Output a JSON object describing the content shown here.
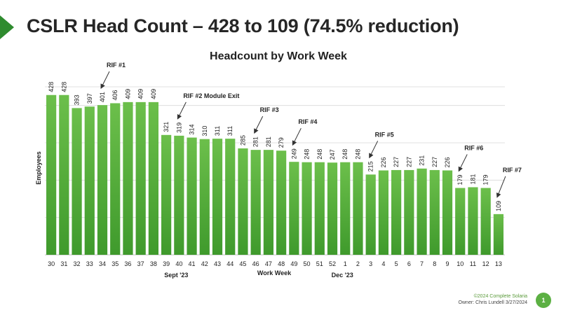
{
  "slide": {
    "title": "CSLR Head Count – 428 to 109 (74.5% reduction)",
    "footer_copyright": "©2024 Complete Solaria",
    "footer_owner": "Owner: Chris Lundell 3/27/2024",
    "page_number": "1"
  },
  "colors": {
    "bar_top": "#6cbf4b",
    "bar_bottom": "#3f9a2c",
    "accent": "#2e8b2e"
  },
  "chart_data": {
    "type": "bar",
    "title": "Headcount by Work Week",
    "xlabel": "Work Week",
    "ylabel": "Employees",
    "ylim": [
      0,
      450
    ],
    "grid": true,
    "categories": [
      "30",
      "31",
      "32",
      "33",
      "34",
      "35",
      "36",
      "37",
      "38",
      "39",
      "40",
      "41",
      "42",
      "43",
      "44",
      "45",
      "46",
      "47",
      "48",
      "49",
      "50",
      "51",
      "52",
      "1",
      "2",
      "3",
      "4",
      "5",
      "6",
      "7",
      "8",
      "9",
      "10",
      "11",
      "12",
      "13"
    ],
    "values": [
      428,
      428,
      393,
      397,
      401,
      406,
      409,
      409,
      409,
      321,
      319,
      314,
      310,
      311,
      311,
      285,
      281,
      281,
      279,
      249,
      248,
      248,
      247,
      248,
      248,
      215,
      226,
      227,
      227,
      231,
      227,
      226,
      179,
      181,
      179,
      109
    ],
    "period_labels": [
      {
        "text": "Sept '23",
        "category": "40"
      },
      {
        "text": "Dec '23",
        "category": "1"
      }
    ],
    "annotations": [
      {
        "text": "RIF #1",
        "category": "34"
      },
      {
        "text": "RIF #2 Module Exit",
        "category": "40"
      },
      {
        "text": "RIF #3",
        "category": "46"
      },
      {
        "text": "RIF #4",
        "category": "49"
      },
      {
        "text": "RIF #5",
        "category": "3"
      },
      {
        "text": "RIF #6",
        "category": "10"
      },
      {
        "text": "RIF #7",
        "category": "13"
      }
    ]
  }
}
